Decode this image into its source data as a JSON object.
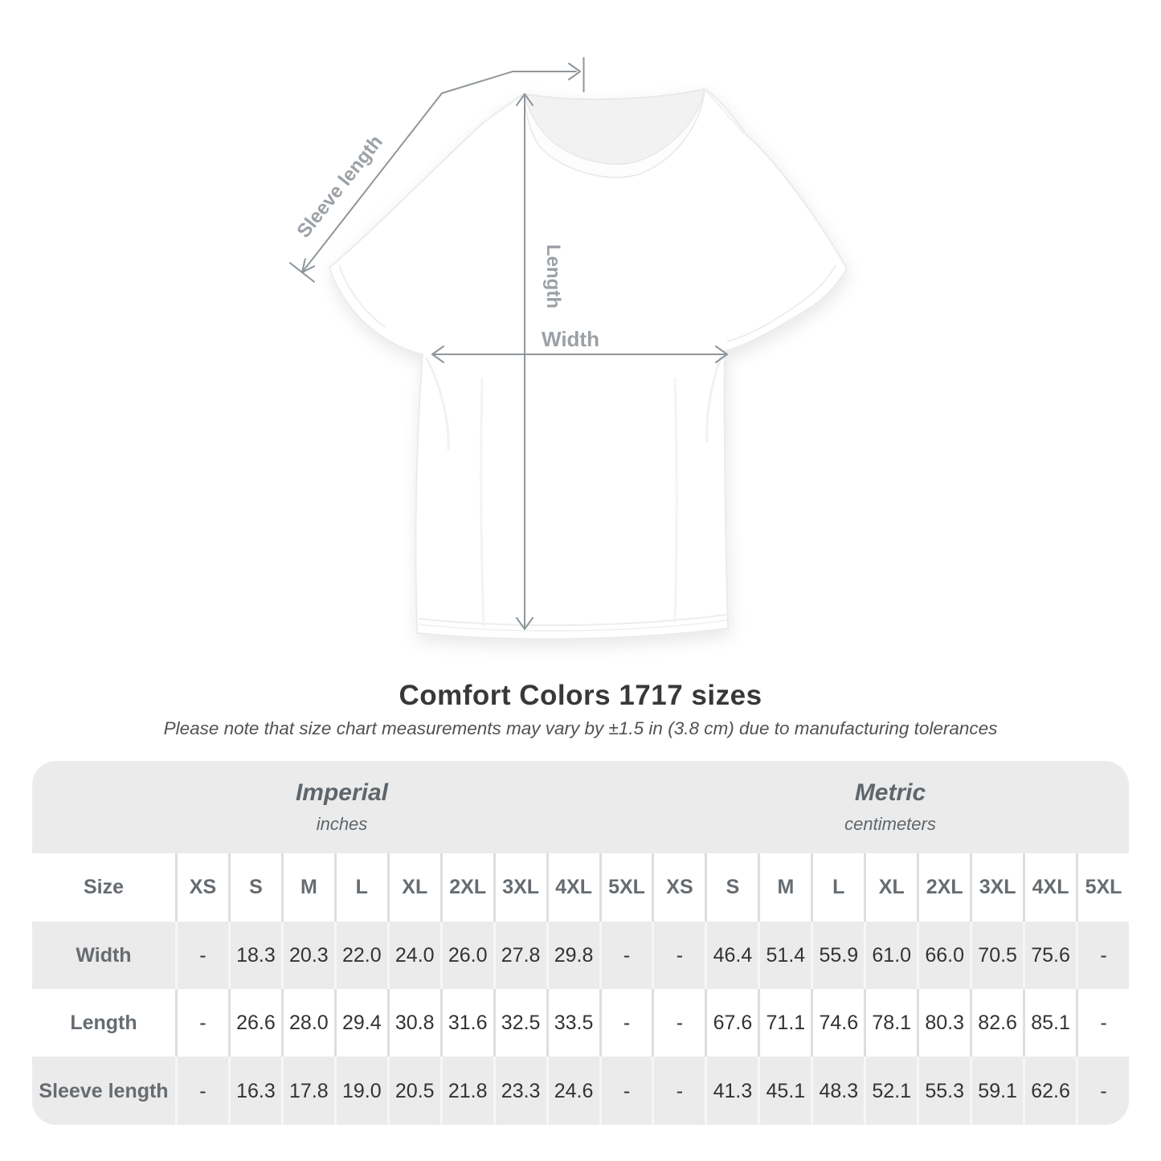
{
  "colors": {
    "annotation_line_gray": "#8f969b",
    "annotation_label_gray": "#9ba1a6",
    "table_band_gray": "#ebebeb",
    "header_text_gray": "#666c71",
    "value_text": "#333333",
    "title_text": "#383838"
  },
  "diagram": {
    "sleeve_label": "Sleeve length",
    "length_label": "Length",
    "width_label": "Width"
  },
  "title": "Comfort Colors 1717 sizes",
  "subtitle": "Please note that size chart measurements may vary by ±1.5 in (3.8 cm) due to manufacturing tolerances",
  "table": {
    "unit_groups": [
      {
        "name": "Imperial",
        "unit": "inches"
      },
      {
        "name": "Metric",
        "unit": "centimeters"
      }
    ],
    "size_label": "Size",
    "sizes": [
      "XS",
      "S",
      "M",
      "L",
      "XL",
      "2XL",
      "3XL",
      "4XL",
      "5XL"
    ],
    "rows": [
      {
        "label": "Width",
        "imperial": [
          "-",
          "18.3",
          "20.3",
          "22.0",
          "24.0",
          "26.0",
          "27.8",
          "29.8",
          "-"
        ],
        "metric": [
          "-",
          "46.4",
          "51.4",
          "55.9",
          "61.0",
          "66.0",
          "70.5",
          "75.6",
          "-"
        ]
      },
      {
        "label": "Length",
        "imperial": [
          "-",
          "26.6",
          "28.0",
          "29.4",
          "30.8",
          "31.6",
          "32.5",
          "33.5",
          "-"
        ],
        "metric": [
          "-",
          "67.6",
          "71.1",
          "74.6",
          "78.1",
          "80.3",
          "82.6",
          "85.1",
          "-"
        ]
      },
      {
        "label": "Sleeve length",
        "imperial": [
          "-",
          "16.3",
          "17.8",
          "19.0",
          "20.5",
          "21.8",
          "23.3",
          "24.6",
          "-"
        ],
        "metric": [
          "-",
          "41.3",
          "45.1",
          "48.3",
          "52.1",
          "55.3",
          "59.1",
          "62.6",
          "-"
        ]
      }
    ]
  }
}
